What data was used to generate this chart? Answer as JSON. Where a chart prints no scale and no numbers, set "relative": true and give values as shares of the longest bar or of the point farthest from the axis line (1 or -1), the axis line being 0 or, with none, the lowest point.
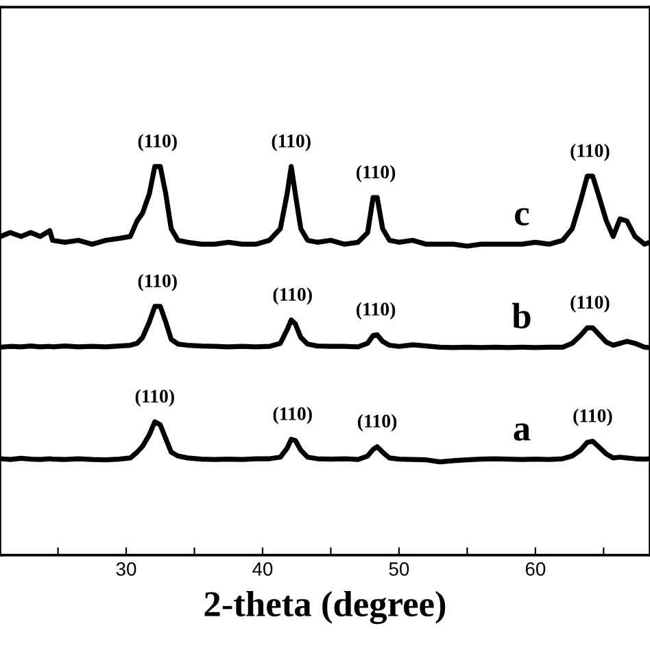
{
  "chart_data": {
    "type": "line",
    "relative": true,
    "xlabel": "2-theta (degree)",
    "xlim": [
      20.75,
      68.4
    ],
    "xticks": [
      {
        "value": 25,
        "label": null
      },
      30,
      {
        "value": 35,
        "label": null
      },
      40,
      {
        "value": 45,
        "label": null
      },
      50,
      {
        "value": 55,
        "label": null
      },
      60,
      {
        "value": 65,
        "label": null
      }
    ],
    "tick_labels": "x",
    "grid": false,
    "legend": false,
    "x": [
      20.8,
      21.5,
      22.3,
      23,
      23.7,
      24.4,
      24.6,
      25.5,
      26.5,
      27.5,
      28.5,
      29.5,
      30.3,
      30.8,
      31.2,
      31.7,
      32.1,
      32.5,
      32.9,
      33.3,
      33.8,
      34.5,
      35.5,
      36.5,
      37.5,
      38.5,
      39.5,
      40.5,
      41.3,
      41.8,
      42.1,
      42.4,
      42.8,
      43.3,
      44,
      45,
      46,
      47,
      47.7,
      48.1,
      48.4,
      48.8,
      49.3,
      50,
      51,
      52,
      53,
      54,
      55,
      56,
      57,
      58,
      59,
      60,
      61,
      62,
      62.7,
      63.3,
      63.8,
      64.2,
      64.6,
      65.2,
      65.7,
      66.2,
      66.7,
      67.3,
      68.0,
      68.4
    ],
    "series": [
      {
        "name": "c",
        "color": "#000000",
        "values": [
          0.82,
          0.83,
          0.82,
          0.83,
          0.82,
          0.835,
          0.81,
          0.805,
          0.81,
          0.8,
          0.81,
          0.815,
          0.82,
          0.86,
          0.88,
          0.93,
          1.0,
          1.0,
          0.93,
          0.84,
          0.81,
          0.805,
          0.8,
          0.8,
          0.805,
          0.8,
          0.8,
          0.81,
          0.84,
          0.93,
          1.0,
          0.93,
          0.84,
          0.81,
          0.805,
          0.81,
          0.8,
          0.805,
          0.83,
          0.92,
          0.92,
          0.84,
          0.81,
          0.805,
          0.81,
          0.8,
          0.8,
          0.8,
          0.795,
          0.8,
          0.8,
          0.8,
          0.8,
          0.805,
          0.8,
          0.81,
          0.84,
          0.91,
          0.975,
          0.975,
          0.93,
          0.86,
          0.82,
          0.865,
          0.86,
          0.82,
          0.8,
          0.805
        ]
      },
      {
        "name": "b",
        "color": "#000000",
        "values": [
          0.535,
          0.537,
          0.536,
          0.538,
          0.536,
          0.537,
          0.536,
          0.538,
          0.536,
          0.537,
          0.536,
          0.538,
          0.54,
          0.545,
          0.56,
          0.6,
          0.64,
          0.64,
          0.6,
          0.555,
          0.543,
          0.54,
          0.538,
          0.537,
          0.536,
          0.537,
          0.536,
          0.537,
          0.545,
          0.58,
          0.605,
          0.595,
          0.56,
          0.543,
          0.538,
          0.537,
          0.537,
          0.536,
          0.545,
          0.565,
          0.567,
          0.55,
          0.54,
          0.537,
          0.541,
          0.538,
          0.535,
          0.534,
          0.535,
          0.534,
          0.535,
          0.534,
          0.535,
          0.534,
          0.535,
          0.535,
          0.545,
          0.565,
          0.585,
          0.585,
          0.57,
          0.548,
          0.54,
          0.545,
          0.55,
          0.545,
          0.535,
          0.534
        ]
      },
      {
        "name": "a",
        "color": "#000000",
        "values": [
          0.248,
          0.246,
          0.249,
          0.247,
          0.246,
          0.248,
          0.247,
          0.246,
          0.248,
          0.246,
          0.245,
          0.247,
          0.25,
          0.265,
          0.28,
          0.31,
          0.343,
          0.335,
          0.3,
          0.265,
          0.255,
          0.25,
          0.247,
          0.246,
          0.247,
          0.246,
          0.248,
          0.248,
          0.252,
          0.275,
          0.298,
          0.295,
          0.27,
          0.252,
          0.248,
          0.247,
          0.248,
          0.246,
          0.255,
          0.272,
          0.279,
          0.265,
          0.25,
          0.247,
          0.246,
          0.245,
          0.24,
          0.243,
          0.245,
          0.247,
          0.248,
          0.247,
          0.246,
          0.247,
          0.246,
          0.248,
          0.255,
          0.27,
          0.29,
          0.293,
          0.28,
          0.26,
          0.25,
          0.252,
          0.25,
          0.248,
          0.247,
          0.248
        ]
      }
    ],
    "annotations": [
      {
        "text": "(110)",
        "x": 32.3,
        "y": 1.0
      },
      {
        "text": "(110)",
        "x": 42.1,
        "y": 1.0
      },
      {
        "text": "(110)",
        "x": 48.3,
        "y": 0.92
      },
      {
        "text": "(110)",
        "x": 64.0,
        "y": 0.975
      },
      {
        "text": "(110)",
        "x": 32.3,
        "y": 0.64
      },
      {
        "text": "(110)",
        "x": 42.2,
        "y": 0.605
      },
      {
        "text": "(110)",
        "x": 48.3,
        "y": 0.567
      },
      {
        "text": "(110)",
        "x": 64.0,
        "y": 0.585
      },
      {
        "text": "(110)",
        "x": 32.1,
        "y": 0.343
      },
      {
        "text": "(110)",
        "x": 42.2,
        "y": 0.298
      },
      {
        "text": "(110)",
        "x": 48.4,
        "y": 0.279
      },
      {
        "text": "(110)",
        "x": 64.2,
        "y": 0.293
      }
    ]
  }
}
